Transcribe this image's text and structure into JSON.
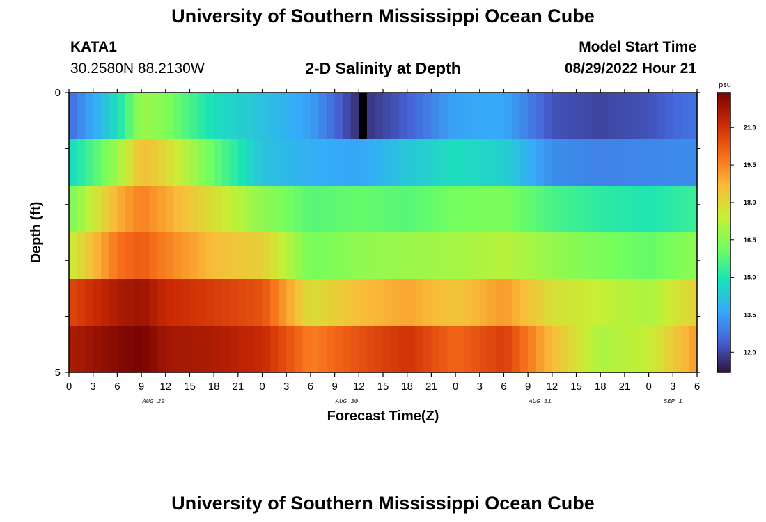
{
  "header": {
    "title": "University of Southern Mississippi Ocean Cube",
    "station": "KATA1",
    "coords": "30.2580N  88.2130W",
    "plot_title": "2-D Salinity at Depth",
    "start_label": "Model Start Time",
    "start_value": "08/29/2022 Hour 21"
  },
  "footer": {
    "title": "University of Southern Mississippi Ocean Cube"
  },
  "colors": {
    "colormap": [
      "#30123b",
      "#4662d7",
      "#36aaf9",
      "#1ae4b6",
      "#72fe5e",
      "#c7ef34",
      "#fabb39",
      "#f66b19",
      "#ca2a04",
      "#7a0403"
    ]
  },
  "chart_data": {
    "type": "heatmap",
    "title": "2-D Salinity at Depth",
    "xlabel": "Forecast Time(Z)",
    "ylabel": "Depth (ft)",
    "unit": "psu",
    "x_hours": [
      0,
      3,
      6,
      9,
      12,
      15,
      18,
      21,
      24,
      27,
      30,
      33,
      36,
      39,
      42,
      45,
      48,
      51,
      54,
      57,
      60,
      63,
      66,
      69,
      72,
      75,
      78
    ],
    "xtick_labels": [
      "0",
      "3",
      "6",
      "9",
      "12",
      "15",
      "18",
      "21",
      "0",
      "3",
      "6",
      "9",
      "12",
      "15",
      "18",
      "21",
      "0",
      "3",
      "6",
      "9",
      "12",
      "15",
      "18",
      "21",
      "0",
      "3",
      "6"
    ],
    "date_labels": [
      {
        "label": "AUG 29",
        "hour": 10.5
      },
      {
        "label": "AUG 30",
        "hour": 34.5
      },
      {
        "label": "AUG 31",
        "hour": 58.5
      },
      {
        "label": "SEP 1",
        "hour": 75
      }
    ],
    "ylim": [
      0,
      5
    ],
    "ytick_labels": [
      "0",
      "5"
    ],
    "depth_layers": [
      0,
      1,
      2,
      3,
      4,
      5
    ],
    "colorbar": {
      "vmin": 11.2,
      "vmax": 22.4,
      "ticks": [
        12.0,
        13.5,
        15.0,
        16.5,
        18.0,
        19.5,
        21.0
      ],
      "tick_labels": [
        "12.0",
        "13.5",
        "15.0",
        "16.5",
        "18.0",
        "19.5",
        "21.0"
      ]
    },
    "missing_hour": 36,
    "salinity_psu": [
      {
        "depth_index": 0,
        "hours": [
          0,
          6,
          9,
          12,
          18,
          24,
          30,
          36,
          42,
          48,
          54,
          60,
          66,
          72,
          78
        ],
        "values": [
          12.6,
          14.8,
          16.8,
          16.4,
          14.8,
          14.2,
          13.5,
          11.6,
          12.4,
          13.6,
          13.7,
          12.2,
          12.0,
          12.2,
          12.8
        ]
      },
      {
        "depth_index": 1,
        "hours": [
          0,
          6,
          9,
          12,
          18,
          24,
          30,
          36,
          42,
          48,
          54,
          60,
          66,
          72,
          78
        ],
        "values": [
          14.6,
          16.8,
          18.6,
          18.0,
          16.0,
          14.2,
          13.8,
          13.6,
          14.3,
          14.8,
          14.5,
          13.2,
          13.0,
          13.1,
          13.2
        ]
      },
      {
        "depth_index": 2,
        "hours": [
          0,
          6,
          9,
          12,
          18,
          24,
          30,
          36,
          42,
          48,
          54,
          60,
          66,
          72,
          78
        ],
        "values": [
          16.2,
          18.8,
          19.6,
          19.0,
          17.8,
          16.6,
          15.8,
          16.0,
          15.8,
          16.2,
          16.3,
          15.6,
          15.2,
          15.0,
          15.4
        ]
      },
      {
        "depth_index": 3,
        "hours": [
          0,
          6,
          9,
          12,
          18,
          24,
          30,
          36,
          42,
          48,
          54,
          60,
          66,
          72,
          78
        ],
        "values": [
          17.4,
          19.8,
          20.2,
          19.6,
          18.6,
          18.2,
          16.2,
          16.6,
          16.8,
          16.9,
          17.2,
          16.7,
          16.3,
          16.0,
          16.6
        ]
      },
      {
        "depth_index": 4,
        "hours": [
          0,
          6,
          9,
          12,
          18,
          24,
          30,
          36,
          42,
          48,
          54,
          60,
          66,
          72,
          78
        ],
        "values": [
          20.6,
          21.6,
          21.9,
          21.2,
          20.8,
          20.4,
          17.8,
          18.6,
          19.0,
          18.4,
          19.2,
          17.8,
          17.4,
          17.0,
          18.2
        ]
      },
      {
        "depth_index": 5,
        "hours": [
          0,
          6,
          9,
          12,
          18,
          24,
          30,
          36,
          42,
          48,
          54,
          60,
          66,
          72,
          78
        ],
        "values": [
          21.6,
          22.2,
          22.4,
          21.8,
          21.6,
          21.2,
          19.6,
          20.4,
          21.0,
          20.0,
          20.8,
          18.6,
          17.0,
          17.4,
          19.2
        ]
      }
    ]
  }
}
